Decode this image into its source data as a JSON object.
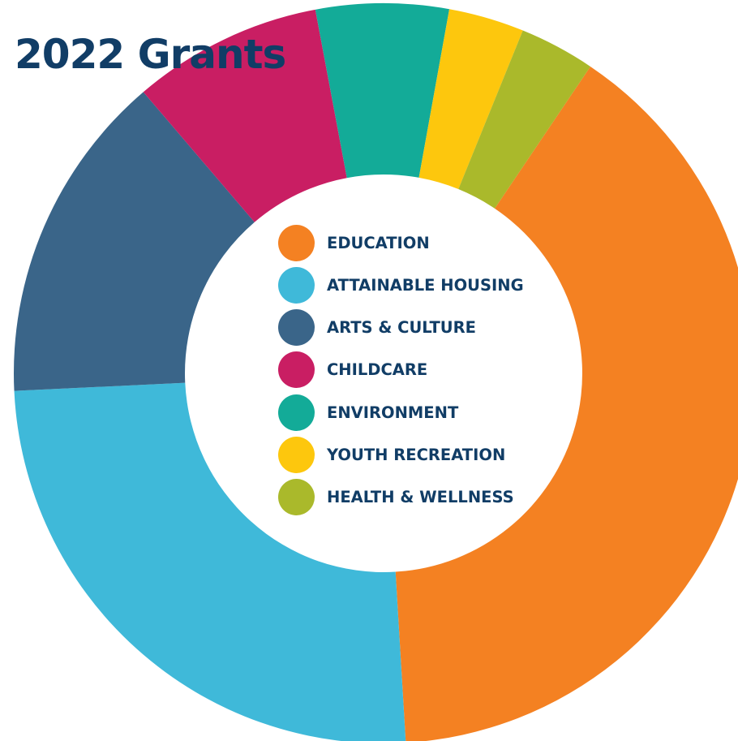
{
  "chart_data": {
    "type": "pie",
    "title": "2022 Grants",
    "categories": [
      "EDUCATION",
      "ATTAINABLE HOUSING",
      "ARTS & CULTURE",
      "CHILDCARE",
      "ENVIRONMENT",
      "YOUTH RECREATION",
      "HEALTH & WELLNESS"
    ],
    "values": [
      39.6,
      25.2,
      14.5,
      8.3,
      5.8,
      3.3,
      3.3
    ],
    "colors": [
      "#f48122",
      "#3fb9d9",
      "#3a6589",
      "#c91e63",
      "#13ab98",
      "#fdc70d",
      "#aab92b"
    ],
    "legend_position": "center",
    "donut": true,
    "grid": false
  }
}
